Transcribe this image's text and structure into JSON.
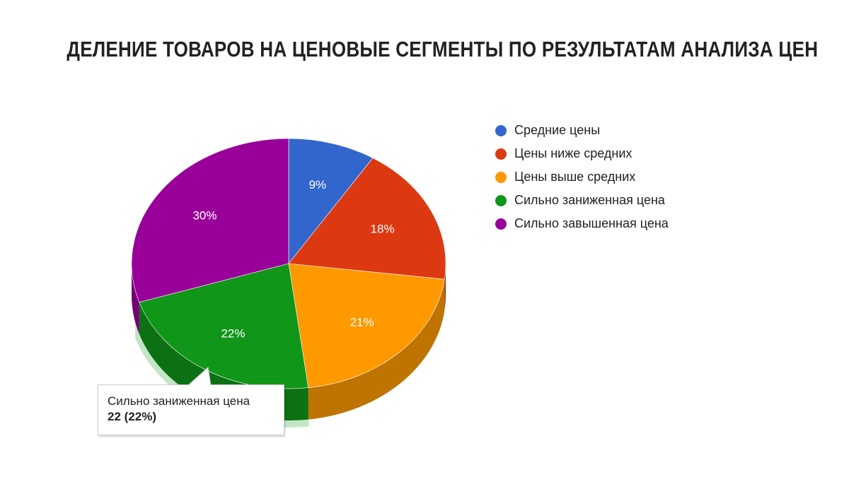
{
  "title": "ДЕЛЕНИЕ ТОВАРОВ НА ЦЕНОВЫЕ СЕГМЕНТЫ ПО РЕЗУЛЬТАТАМ АНАЛИЗА ЦЕН",
  "chart_data": {
    "type": "pie",
    "style": "3d",
    "title": "ДЕЛЕНИЕ ТОВАРОВ НА ЦЕНОВЫЕ СЕГМЕНТЫ ПО РЕЗУЛЬТАТАМ АНАЛИЗА ЦЕН",
    "legend_position": "right",
    "start": "top",
    "direction": "clockwise",
    "slices": [
      {
        "label": "Средние цены",
        "percent": 9,
        "value_label": "9%",
        "color": "#3366cc",
        "side_color": "#26509f"
      },
      {
        "label": "Цены ниже средних",
        "percent": 18,
        "value_label": "18%",
        "color": "#dc3912",
        "side_color": "#a52b0e"
      },
      {
        "label": "Цены выше средних",
        "percent": 21,
        "value_label": "21%",
        "color": "#ff9900",
        "side_color": "#bf7300"
      },
      {
        "label": "Сильно заниженная цена",
        "percent": 22,
        "value": 22,
        "value_label": "22%",
        "color": "#109618",
        "side_color": "#0c7112",
        "highlighted": true
      },
      {
        "label": "Сильно завышенная цена",
        "percent": 30,
        "value_label": "30%",
        "color": "#990099",
        "side_color": "#730073"
      }
    ]
  },
  "legend": [
    {
      "label": "Средние цены",
      "color": "#3366cc"
    },
    {
      "label": "Цены ниже средних",
      "color": "#dc3912"
    },
    {
      "label": "Цены выше средних",
      "color": "#ff9900"
    },
    {
      "label": "Сильно заниженная цена",
      "color": "#109618"
    },
    {
      "label": "Сильно завышенная цена",
      "color": "#990099"
    }
  ],
  "tooltip": {
    "label": "Сильно заниженная цена",
    "value": "22 (22%)"
  }
}
